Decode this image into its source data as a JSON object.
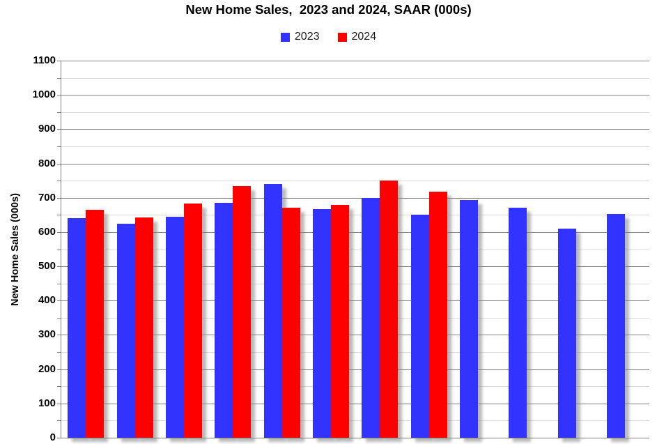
{
  "title": "New Home Sales,  2023 and 2024, SAAR (000s)",
  "legend": [
    {
      "label": "2023",
      "color": "#3333ff"
    },
    {
      "label": "2024",
      "color": "#ff0000"
    }
  ],
  "chart_data": {
    "type": "bar",
    "title": "New Home Sales,  2023 and 2024, SAAR (000s)",
    "ylabel": "New Home Sales (000s)",
    "ylim": [
      0,
      1100
    ],
    "ytick_step": 100,
    "yminor_step": 50,
    "ytick_labels": [
      "0",
      "100",
      "200",
      "300",
      "400",
      "500",
      "600",
      "700",
      "800",
      "900",
      "1000",
      "1100"
    ],
    "grid": "horizontal; major gridlines dark gray, minor (50s) light gray",
    "legend_position": "top-center",
    "n_groups": 12,
    "x_tick_labels_visible": false,
    "series": [
      {
        "name": "2023",
        "color": "#3333ff",
        "values": [
          640,
          625,
          644,
          685,
          741,
          666,
          700,
          650,
          694,
          671,
          611,
          653
        ]
      },
      {
        "name": "2024",
        "color": "#ff0000",
        "values": [
          664,
          643,
          683,
          735,
          672,
          680,
          751,
          717
        ]
      }
    ],
    "colors": {
      "major_grid": "#808080",
      "minor_grid": "#d9d9d9",
      "axis": "#808080",
      "bar_shadow": "rgba(128,128,128,0.55)",
      "text": "#000000"
    }
  }
}
